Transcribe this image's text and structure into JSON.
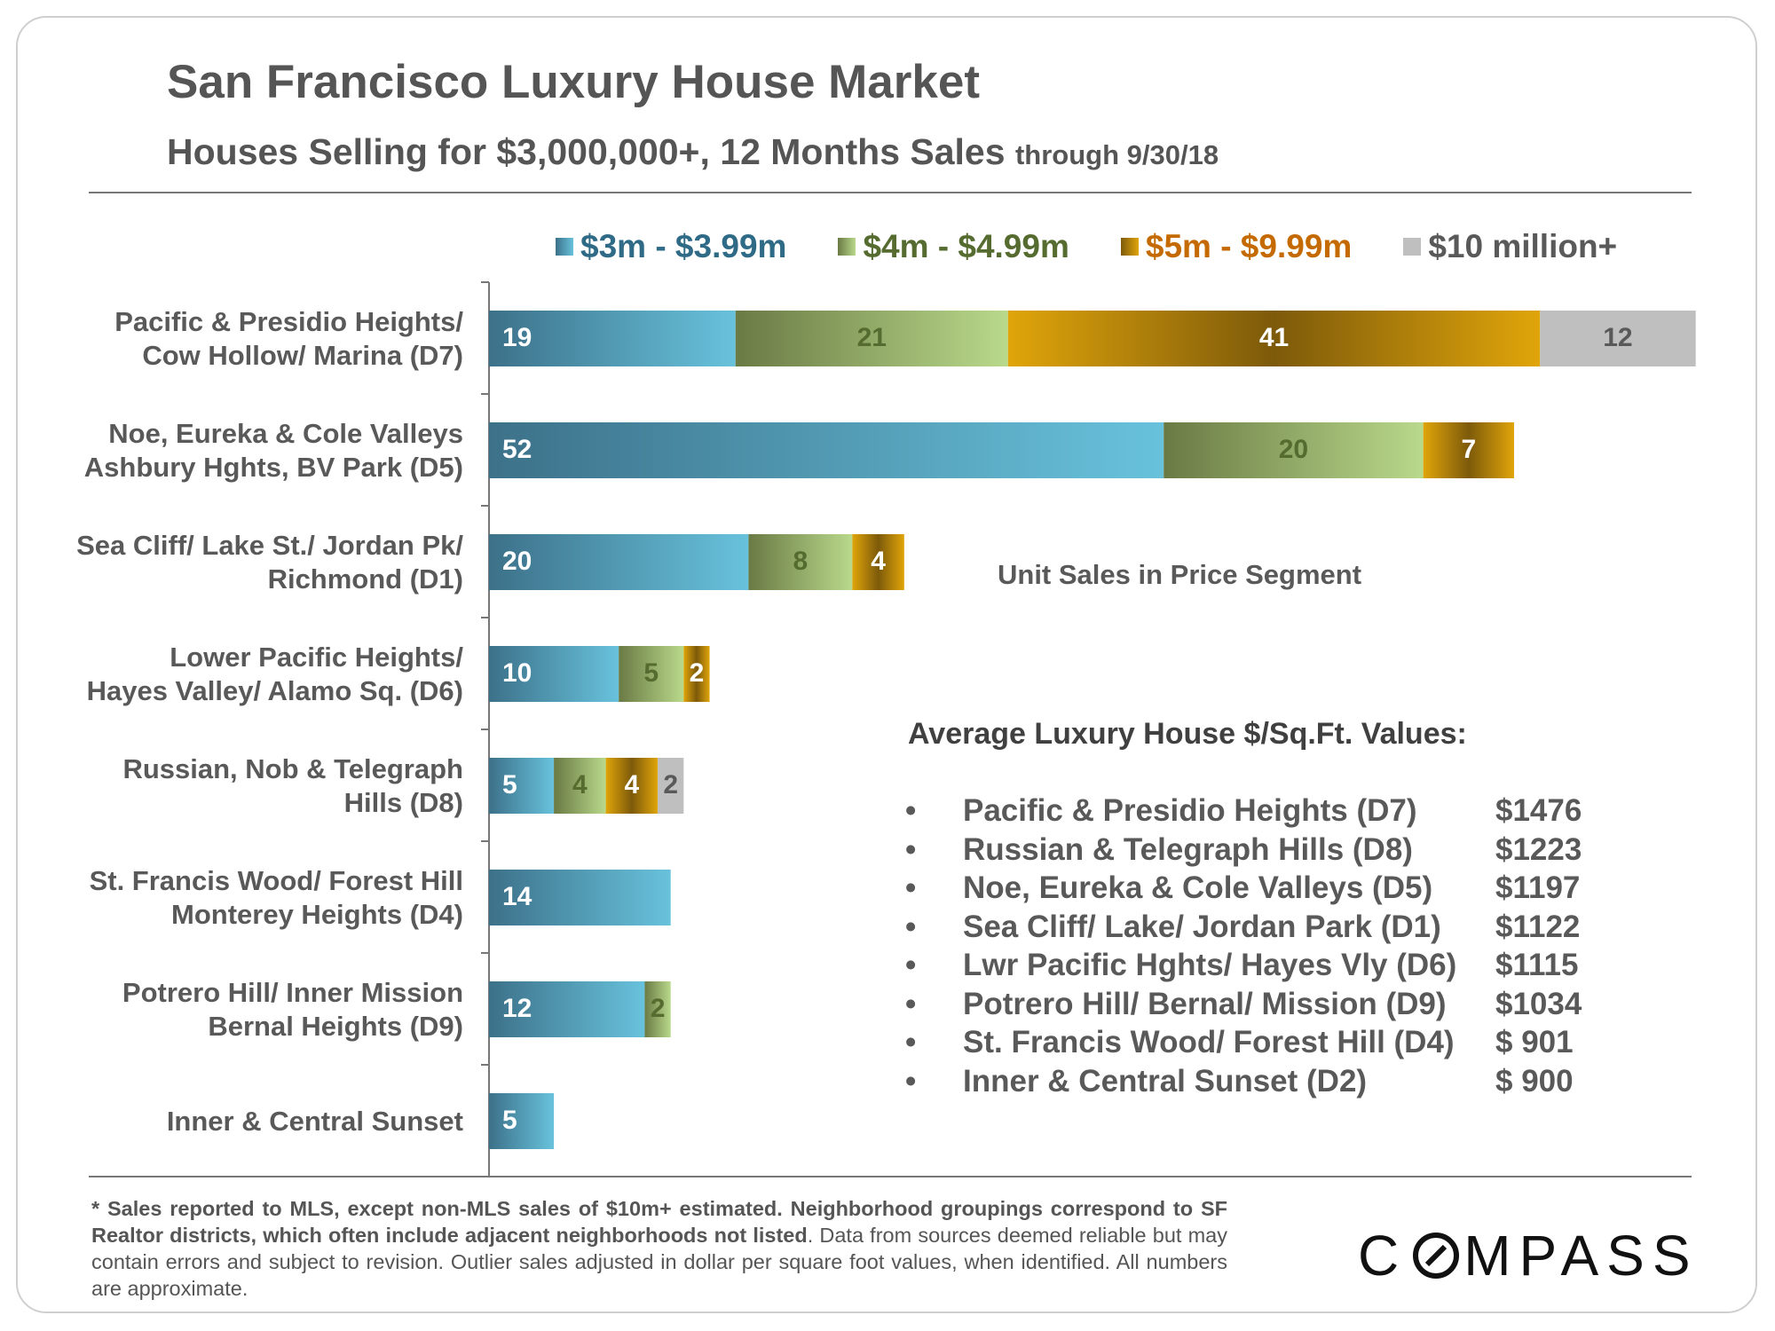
{
  "title": "San Francisco Luxury House Market",
  "subtitle": {
    "main": "Houses Selling for $3,000,000+, 12 Months Sales",
    "suffix": "through 9/30/18"
  },
  "colors": {
    "seg1_dark": "#3c7189",
    "seg1_light": "#68c2dc",
    "seg1_text": "#2f6b86",
    "seg2_dark": "#6a7a44",
    "seg2_light": "#b9d98b",
    "seg2_text": "#556b2f",
    "seg3_dark": "#7d5a0a",
    "seg3_light": "#e0a50a",
    "seg3_text": "#c46a00",
    "seg4": "#bfbfbf",
    "seg4_text": "#595959",
    "axis": "#777777",
    "text": "#595959"
  },
  "chart_data": {
    "type": "bar",
    "orientation": "horizontal",
    "stacked": true,
    "categories": [
      [
        "Pacific & Presidio Heights/",
        "Cow Hollow/ Marina (D7)"
      ],
      [
        "Noe, Eureka & Cole Valleys",
        "Ashbury Hghts, BV Park (D5)"
      ],
      [
        "Sea Cliff/ Lake St./ Jordan Pk/",
        "Richmond (D1)"
      ],
      [
        "Lower Pacific Heights/",
        "Hayes Valley/ Alamo Sq. (D6)"
      ],
      [
        "Russian, Nob & Telegraph",
        "Hills (D8)"
      ],
      [
        "St. Francis Wood/ Forest Hill",
        "Monterey Heights (D4)"
      ],
      [
        "Potrero Hill/ Inner Mission",
        "Bernal Heights (D9)"
      ],
      [
        "Inner & Central Sunset"
      ]
    ],
    "series": [
      {
        "name": "$3m - $3.99m",
        "values": [
          19,
          52,
          20,
          10,
          5,
          14,
          12,
          5
        ]
      },
      {
        "name": "$4m - $4.99m",
        "values": [
          21,
          20,
          8,
          5,
          4,
          0,
          2,
          0
        ]
      },
      {
        "name": "$5m - $9.99m",
        "values": [
          41,
          7,
          4,
          2,
          4,
          0,
          0,
          0
        ]
      },
      {
        "name": "$10 million+",
        "values": [
          12,
          0,
          0,
          0,
          2,
          0,
          0,
          0
        ]
      }
    ],
    "xlim": [
      0,
      93
    ],
    "annotation": "Unit Sales in Price Segment",
    "legend_position": "top"
  },
  "ppsf": {
    "title": "Average Luxury House $/Sq.Ft. Values:",
    "bullet": "•",
    "items": [
      {
        "name": "Pacific & Presidio Heights (D7)",
        "value": "$1476"
      },
      {
        "name": "Russian & Telegraph Hills (D8)",
        "value": "$1223"
      },
      {
        "name": "Noe, Eureka & Cole Valleys (D5)",
        "value": "$1197"
      },
      {
        "name": "Sea Cliff/ Lake/ Jordan Park (D1)",
        "value": "$1122"
      },
      {
        "name": "Lwr Pacific Hghts/ Hayes Vly (D6)",
        "value": "$1115"
      },
      {
        "name": "Potrero Hill/ Bernal/ Mission (D9)",
        "value": "$1034"
      },
      {
        "name": "St. Francis Wood/ Forest Hill (D4)",
        "value": "$ 901"
      },
      {
        "name": "Inner & Central Sunset (D2)",
        "value": "$ 900"
      }
    ]
  },
  "footnote": {
    "bold": "* Sales reported to MLS, except non-MLS sales of $10m+ estimated. Neighborhood groupings correspond to SF Realtor districts, which often include adjacent neighborhoods not listed",
    "regular": ". Data from sources deemed reliable but may contain errors and subject to revision. Outlier sales adjusted in dollar per square foot values, when identified. All numbers are approximate."
  },
  "logo": {
    "left": "C",
    "right": "MPASS"
  }
}
